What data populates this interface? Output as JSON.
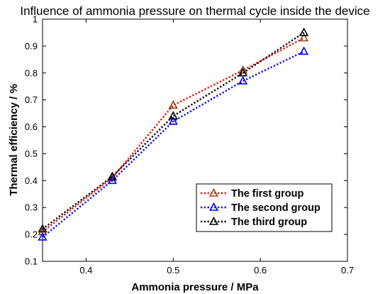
{
  "chart_data": {
    "type": "line",
    "title": "Influence of ammonia pressure on thermal cycle inside the device",
    "xlabel": "Ammonia pressure / MPa",
    "ylabel": "Thermal efficiency / %",
    "xlim": [
      0.35,
      0.7
    ],
    "ylim": [
      0.1,
      1.0
    ],
    "xticks": [
      0.4,
      0.5,
      0.6,
      0.7
    ],
    "xtick_labels": [
      "0.4",
      "0.5",
      "0.6",
      "0.7"
    ],
    "yticks": [
      0.1,
      0.2,
      0.3,
      0.4,
      0.5,
      0.6,
      0.7,
      0.8,
      0.9,
      1.0
    ],
    "ytick_labels": [
      "0.1",
      "0.2",
      "0.3",
      "0.4",
      "0.5",
      "0.6",
      "0.7",
      "0.8",
      "0.9",
      "1"
    ],
    "grid": false,
    "legend_position": "lower-right",
    "x": [
      0.35,
      0.43,
      0.5,
      0.58,
      0.65
    ],
    "series": [
      {
        "name": "The first group",
        "values": [
          0.21,
          0.41,
          0.68,
          0.81,
          0.93
        ],
        "color": "#ff0000",
        "marker_color": "#8b4513",
        "marker": "triangle",
        "line_style": "dotted"
      },
      {
        "name": "The second group",
        "values": [
          0.19,
          0.4,
          0.62,
          0.77,
          0.88
        ],
        "color": "#0000ff",
        "marker_color": "#0000ff",
        "marker": "triangle",
        "line_style": "dotted"
      },
      {
        "name": "The third group",
        "values": [
          0.22,
          0.415,
          0.64,
          0.8,
          0.95
        ],
        "color": "#000000",
        "marker_color": "#000000",
        "marker": "triangle",
        "line_style": "dotted"
      }
    ]
  }
}
